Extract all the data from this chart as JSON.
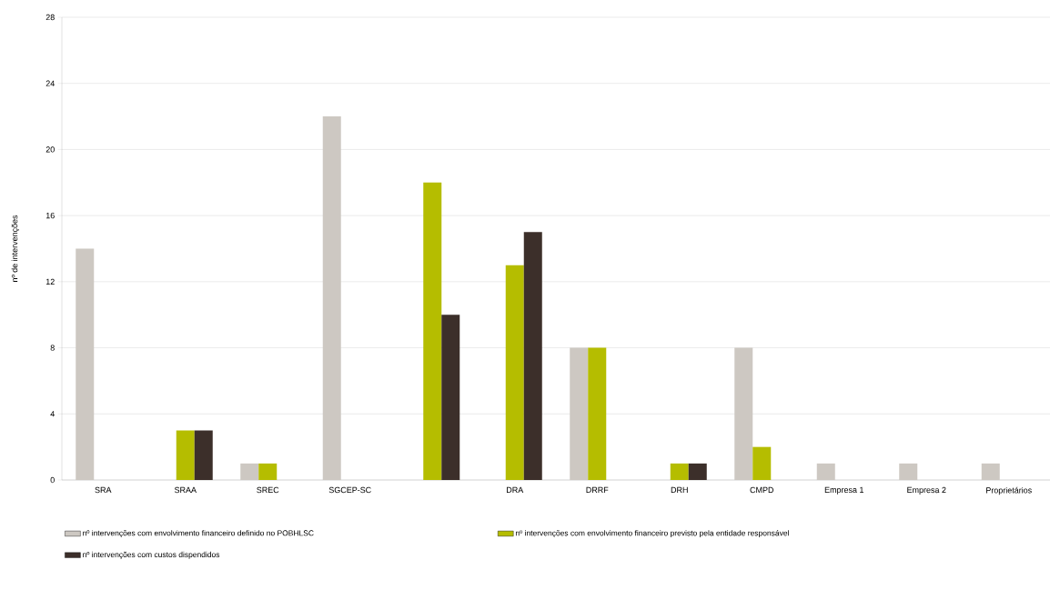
{
  "chart_data": {
    "type": "bar",
    "ylabel": "nº de intervenções",
    "categories": [
      "SRA",
      "SRAA",
      "SREC",
      "SGCEP-SC",
      null,
      "DRA",
      "DRRF",
      "DRH",
      "CMPD",
      "Empresa 1",
      "Empresa 2",
      "Proprietários"
    ],
    "series": [
      {
        "name": "nº intervenções com envolvimento financeiro definido no POBHLSC",
        "color": "#cdc8c2",
        "values": [
          14,
          null,
          1,
          22,
          null,
          null,
          8,
          null,
          8,
          1,
          1,
          1
        ]
      },
      {
        "name": "nº intervenções com envolvimento financeiro previsto pela entidade responsável",
        "color": "#b5bd00",
        "values": [
          null,
          3,
          1,
          null,
          18,
          13,
          8,
          1,
          2,
          null,
          null,
          null
        ]
      },
      {
        "name": "nº intervenções com custos dispendidos",
        "color": "#3c2f2a",
        "values": [
          null,
          3,
          null,
          null,
          10,
          15,
          null,
          1,
          null,
          null,
          null,
          null
        ]
      }
    ],
    "ylim": [
      0,
      28
    ],
    "yticks": [
      0,
      4,
      8,
      12,
      16,
      20,
      24,
      28
    ],
    "grid": "y",
    "legend": "bottom"
  }
}
